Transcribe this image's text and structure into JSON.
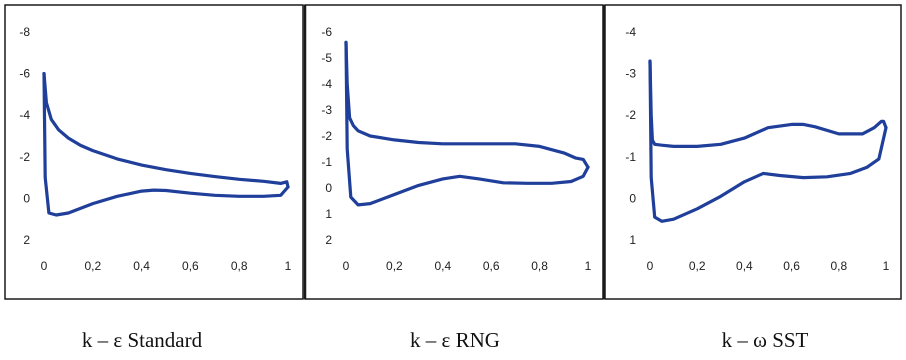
{
  "colors": {
    "curve": "#1f3f9a",
    "panel_border": "#1a1a1a",
    "background": "#ffffff"
  },
  "chart_data": [
    {
      "type": "line",
      "caption": "k – ε Standard",
      "ylim": [
        2,
        -8
      ],
      "xlim": [
        0,
        1
      ],
      "yticks": [
        -8,
        -6,
        -4,
        -2,
        0,
        2
      ],
      "xticks": [
        0,
        0.2,
        0.4,
        0.6,
        0.8,
        1
      ],
      "ytick_labels": [
        "-8",
        "-6",
        "-4",
        "-2",
        "0",
        "2"
      ],
      "xtick_labels": [
        "0",
        "0,2",
        "0,4",
        "0,6",
        "0,8",
        "1"
      ],
      "grid": false,
      "series": [
        {
          "x": [
            0,
            0.01,
            0.03,
            0.06,
            0.1,
            0.15,
            0.2,
            0.3,
            0.4,
            0.5,
            0.6,
            0.7,
            0.8,
            0.9,
            0.97,
            0.995,
            1.0
          ],
          "y": [
            -6.0,
            -4.6,
            -3.8,
            -3.3,
            -2.9,
            -2.55,
            -2.3,
            -1.9,
            -1.6,
            -1.38,
            -1.2,
            -1.05,
            -0.92,
            -0.82,
            -0.72,
            -0.8,
            -0.55
          ]
        },
        {
          "x": [
            0,
            0.005,
            0.02,
            0.05,
            0.1,
            0.2,
            0.3,
            0.4,
            0.45,
            0.5,
            0.6,
            0.7,
            0.8,
            0.9,
            0.97,
            1.0
          ],
          "y": [
            -6.0,
            -1.0,
            0.7,
            0.8,
            0.7,
            0.25,
            -0.1,
            -0.35,
            -0.4,
            -0.38,
            -0.25,
            -0.15,
            -0.1,
            -0.1,
            -0.15,
            -0.55
          ]
        }
      ]
    },
    {
      "type": "line",
      "caption": "k – ε RNG",
      "ylim": [
        2,
        -6
      ],
      "xlim": [
        0,
        1
      ],
      "yticks": [
        -6,
        -5,
        -4,
        -3,
        -2,
        -1,
        0,
        1,
        2
      ],
      "xticks": [
        0,
        0.2,
        0.4,
        0.6,
        0.8,
        1
      ],
      "ytick_labels": [
        "-6",
        "-5",
        "-4",
        "-3",
        "-2",
        "-1",
        "0",
        "1",
        "2"
      ],
      "xtick_labels": [
        "0",
        "0,2",
        "0,4",
        "0,6",
        "0,8",
        "1"
      ],
      "grid": false,
      "series": [
        {
          "x": [
            0,
            0.005,
            0.015,
            0.03,
            0.05,
            0.1,
            0.2,
            0.3,
            0.4,
            0.5,
            0.6,
            0.7,
            0.8,
            0.9,
            0.95,
            0.98,
            1.0
          ],
          "y": [
            -5.6,
            -4.0,
            -2.7,
            -2.4,
            -2.2,
            -2.0,
            -1.85,
            -1.75,
            -1.7,
            -1.7,
            -1.7,
            -1.7,
            -1.6,
            -1.35,
            -1.15,
            -1.1,
            -0.8
          ]
        },
        {
          "x": [
            0,
            0.005,
            0.02,
            0.05,
            0.1,
            0.2,
            0.3,
            0.4,
            0.47,
            0.55,
            0.65,
            0.75,
            0.85,
            0.93,
            0.98,
            1.0
          ],
          "y": [
            -5.6,
            -1.5,
            0.35,
            0.65,
            0.6,
            0.25,
            -0.1,
            -0.35,
            -0.45,
            -0.35,
            -0.2,
            -0.18,
            -0.18,
            -0.25,
            -0.45,
            -0.8
          ]
        }
      ]
    },
    {
      "type": "line",
      "caption": "k – ω SST",
      "ylim": [
        1,
        -4
      ],
      "xlim": [
        0,
        1
      ],
      "yticks": [
        -4,
        -3,
        -2,
        -1,
        0,
        1
      ],
      "xticks": [
        0,
        0.2,
        0.4,
        0.6,
        0.8,
        1
      ],
      "ytick_labels": [
        "-4",
        "-3",
        "-2",
        "-1",
        "0",
        "1"
      ],
      "xtick_labels": [
        "0",
        "0,2",
        "0,4",
        "0,6",
        "0,8",
        "1"
      ],
      "grid": false,
      "series": [
        {
          "x": [
            0,
            0.005,
            0.01,
            0.02,
            0.05,
            0.1,
            0.2,
            0.3,
            0.4,
            0.5,
            0.6,
            0.65,
            0.7,
            0.8,
            0.9,
            0.95,
            0.98,
            0.99,
            1.0
          ],
          "y": [
            -3.3,
            -2.0,
            -1.4,
            -1.3,
            -1.28,
            -1.25,
            -1.25,
            -1.3,
            -1.45,
            -1.7,
            -1.78,
            -1.78,
            -1.72,
            -1.55,
            -1.55,
            -1.7,
            -1.85,
            -1.85,
            -1.7
          ]
        },
        {
          "x": [
            0,
            0.005,
            0.02,
            0.05,
            0.1,
            0.2,
            0.3,
            0.4,
            0.48,
            0.55,
            0.65,
            0.75,
            0.85,
            0.92,
            0.97,
            1.0
          ],
          "y": [
            -3.3,
            -0.5,
            0.45,
            0.55,
            0.5,
            0.25,
            -0.05,
            -0.4,
            -0.6,
            -0.55,
            -0.5,
            -0.52,
            -0.6,
            -0.75,
            -0.95,
            -1.7
          ]
        }
      ]
    }
  ]
}
